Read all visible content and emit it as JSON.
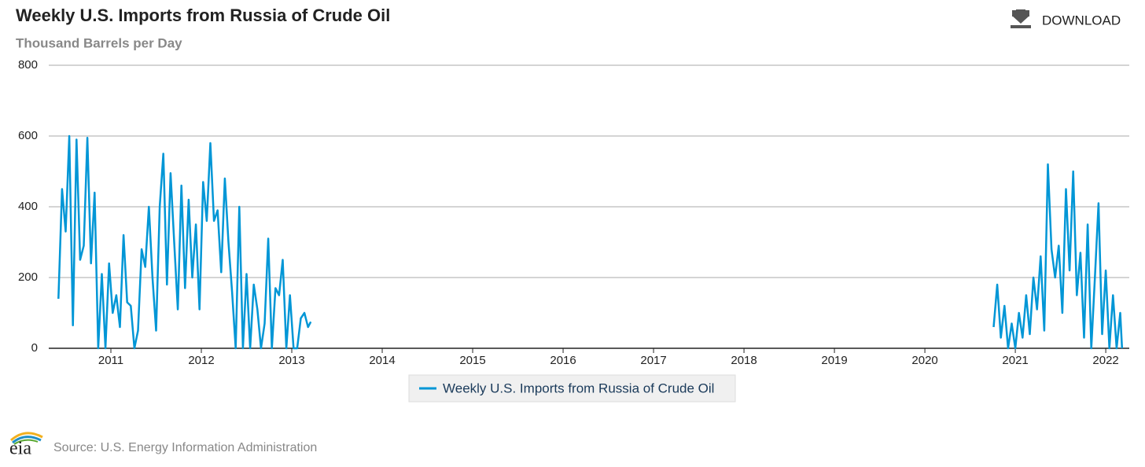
{
  "header": {
    "download": "DOWNLOAD"
  },
  "chart_data": {
    "type": "line",
    "title": "Weekly U.S. Imports from Russia of Crude Oil",
    "subtitle": "Thousand Barrels per Day",
    "x": [
      2010.42,
      2010.46,
      2010.5,
      2010.54,
      2010.58,
      2010.62,
      2010.66,
      2010.7,
      2010.74,
      2010.78,
      2010.82,
      2010.86,
      2010.9,
      2010.94,
      2010.98,
      2011.02,
      2011.06,
      2011.1,
      2011.14,
      2011.18,
      2011.22,
      2011.26,
      2011.3,
      2011.34,
      2011.38,
      2011.42,
      2011.46,
      2011.5,
      2011.54,
      2011.58,
      2011.62,
      2011.66,
      2011.7,
      2011.74,
      2011.78,
      2011.82,
      2011.86,
      2011.9,
      2011.94,
      2011.98,
      2012.02,
      2012.06,
      2012.1,
      2012.14,
      2012.18,
      2012.22,
      2012.26,
      2012.3,
      2012.34,
      2012.38,
      2012.42,
      2012.46,
      2012.5,
      2012.54,
      2012.58,
      2012.62,
      2012.66,
      2012.7,
      2012.74,
      2012.78,
      2012.82,
      2012.86,
      2012.9,
      2012.94,
      2012.98,
      2013.02,
      2013.06,
      2013.1,
      2013.14,
      2013.18,
      2013.21,
      2013.5,
      2020.76,
      2020.8,
      2020.84,
      2020.88,
      2020.92,
      2020.96,
      2021.0,
      2021.04,
      2021.08,
      2021.12,
      2021.16,
      2021.2,
      2021.24,
      2021.28,
      2021.32,
      2021.36,
      2021.4,
      2021.44,
      2021.48,
      2021.52,
      2021.56,
      2021.6,
      2021.64,
      2021.68,
      2021.72,
      2021.76,
      2021.8,
      2021.84,
      2021.88,
      2021.92,
      2021.96,
      2022.0,
      2022.04,
      2022.08,
      2022.12,
      2022.16,
      2022.18
    ],
    "series": [
      {
        "name": "Weekly U.S. Imports from Russia of Crude Oil",
        "color": "#0096d6",
        "values": [
          140,
          450,
          330,
          600,
          65,
          590,
          250,
          290,
          595,
          240,
          440,
          0,
          210,
          0,
          240,
          100,
          150,
          60,
          320,
          130,
          120,
          0,
          50,
          280,
          230,
          400,
          200,
          50,
          400,
          550,
          180,
          495,
          300,
          110,
          460,
          170,
          420,
          200,
          350,
          110,
          470,
          360,
          580,
          360,
          390,
          215,
          480,
          300,
          160,
          0,
          400,
          0,
          210,
          0,
          180,
          110,
          0,
          70,
          310,
          0,
          170,
          150,
          250,
          0,
          150,
          0,
          0,
          85,
          100,
          60,
          75,
          null,
          60,
          180,
          30,
          120,
          0,
          70,
          0,
          100,
          30,
          150,
          40,
          200,
          110,
          260,
          50,
          520,
          280,
          200,
          290,
          100,
          450,
          220,
          500,
          150,
          270,
          30,
          350,
          0,
          200,
          410,
          40,
          220,
          0,
          150,
          0,
          100,
          0
        ]
      }
    ],
    "xlim": [
      2010.313,
      2022.26
    ],
    "ylim": [
      0,
      800
    ],
    "xticks": [
      2011,
      2012,
      2013,
      2014,
      2015,
      2016,
      2017,
      2018,
      2019,
      2020,
      2021,
      2022
    ],
    "yticks": [
      0,
      200,
      400,
      600,
      800
    ],
    "grid": true
  },
  "footer": {
    "logo": "eia",
    "source": "Source: U.S. Energy Information Administration"
  }
}
